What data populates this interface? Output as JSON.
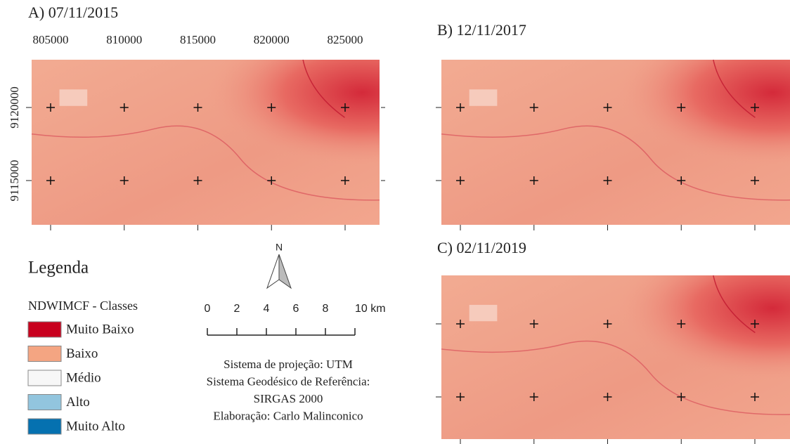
{
  "panels": [
    {
      "title": "A) 07/11/2015"
    },
    {
      "title": "B) 12/11/2017"
    },
    {
      "title": "C) 02/11/2019"
    }
  ],
  "x_ticks": [
    805000,
    810000,
    815000,
    820000,
    825000
  ],
  "y_ticks": [
    9120000,
    9115000
  ],
  "legend": {
    "title": "Legenda",
    "subtitle": "NDWIMCF - Classes",
    "classes": [
      {
        "label": "Muito Baixo",
        "color": "#c8001e"
      },
      {
        "label": "Baixo",
        "color": "#f4a582"
      },
      {
        "label": "Médio",
        "color": "#f7f7f7"
      },
      {
        "label": "Alto",
        "color": "#92c5de"
      },
      {
        "label": "Muito Alto",
        "color": "#0571b0"
      }
    ]
  },
  "north_arrow": "N",
  "scale_bar": {
    "labels": [
      "0",
      "2",
      "4",
      "6",
      "8",
      "10 km"
    ]
  },
  "credits": [
    "Sistema de projeção: UTM",
    "Sistema Geodésico de Referência:",
    "SIRGAS 2000",
    "Elaboração: Carlo Malinconico"
  ]
}
